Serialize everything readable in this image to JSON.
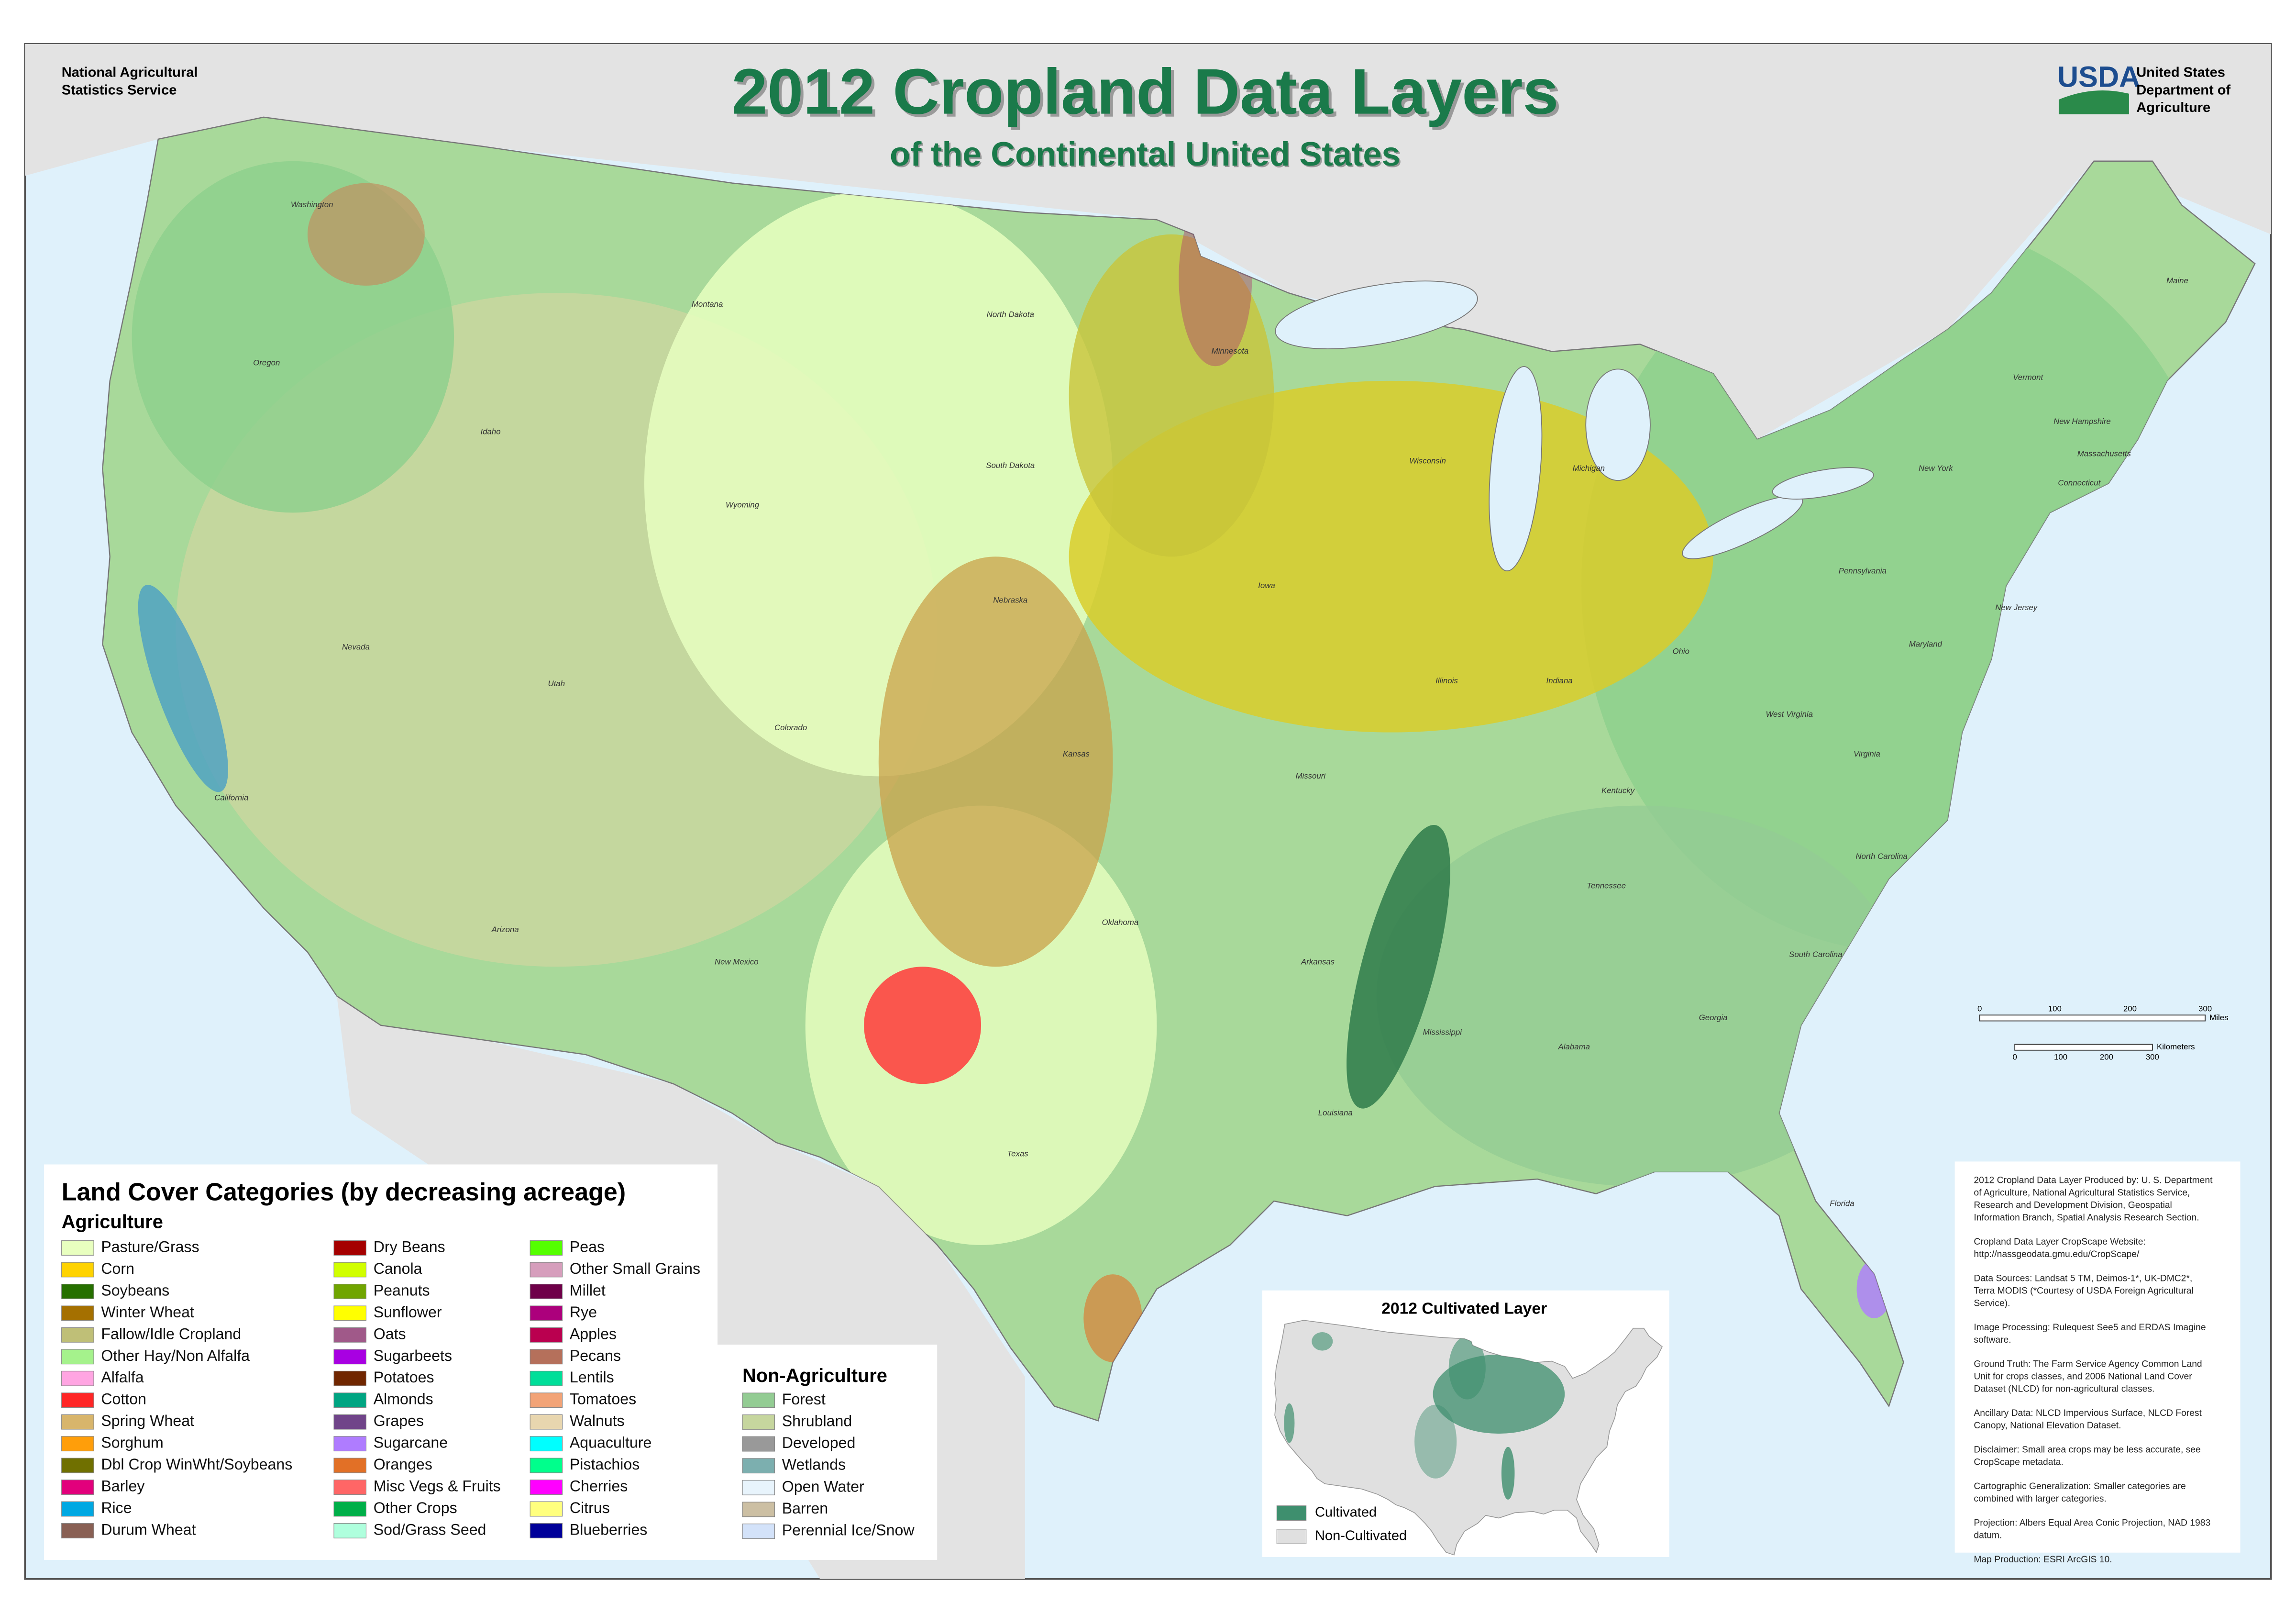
{
  "header": {
    "agency": [
      "National Agricultural",
      "Statistics Service"
    ],
    "title": "2012 Cropland Data Layers",
    "subtitle": "of the Continental United States",
    "usda_logo": "USDA",
    "department": [
      "United States",
      "Department of",
      "Agriculture"
    ]
  },
  "map": {
    "state_labels": [
      "Washington",
      "Oregon",
      "California",
      "Nevada",
      "Idaho",
      "Montana",
      "Wyoming",
      "Utah",
      "Arizona",
      "Colorado",
      "New Mexico",
      "North Dakota",
      "South Dakota",
      "Nebraska",
      "Kansas",
      "Oklahoma",
      "Texas",
      "Minnesota",
      "Iowa",
      "Missouri",
      "Arkansas",
      "Louisiana",
      "Mississippi",
      "Wisconsin",
      "Illinois",
      "Michigan",
      "Indiana",
      "Ohio",
      "Kentucky",
      "Tennessee",
      "Alabama",
      "Georgia",
      "Florida",
      "South Carolina",
      "North Carolina",
      "Virginia",
      "West Virginia",
      "Maryland",
      "Pennsylvania",
      "New York",
      "New Jersey",
      "Vermont",
      "New Hampshire",
      "Maine",
      "Massachusetts",
      "Connecticut"
    ],
    "scale_bar": {
      "miles": {
        "ticks": [
          0,
          100,
          200,
          300
        ],
        "unit": "Miles"
      },
      "kilometers": {
        "ticks": [
          0,
          100,
          200,
          300
        ],
        "unit": "Kilometers"
      }
    }
  },
  "legend": {
    "title": "Land Cover Categories (by decreasing acreage)",
    "agriculture": {
      "heading": "Agriculture",
      "items": [
        {
          "label": "Pasture/Grass",
          "color": "#e8ffbf"
        },
        {
          "label": "Corn",
          "color": "#ffd300"
        },
        {
          "label": "Soybeans",
          "color": "#267000"
        },
        {
          "label": "Winter Wheat",
          "color": "#a57000"
        },
        {
          "label": "Fallow/Idle Cropland",
          "color": "#bfbf77"
        },
        {
          "label": "Other Hay/Non Alfalfa",
          "color": "#a5f28c"
        },
        {
          "label": "Alfalfa",
          "color": "#ffa5e2"
        },
        {
          "label": "Cotton",
          "color": "#ff2626"
        },
        {
          "label": "Spring Wheat",
          "color": "#d8b56b"
        },
        {
          "label": "Sorghum",
          "color": "#ff9e0a"
        },
        {
          "label": "Dbl Crop WinWht/Soybeans",
          "color": "#707000"
        },
        {
          "label": "Barley",
          "color": "#e2007c"
        },
        {
          "label": "Rice",
          "color": "#00a8e2"
        },
        {
          "label": "Durum Wheat",
          "color": "#896054"
        },
        {
          "label": "Dry Beans",
          "color": "#a50000"
        },
        {
          "label": "Canola",
          "color": "#d1ff00"
        },
        {
          "label": "Peanuts",
          "color": "#70a500"
        },
        {
          "label": "Sunflower",
          "color": "#ffff00"
        },
        {
          "label": "Oats",
          "color": "#a05989"
        },
        {
          "label": "Sugarbeets",
          "color": "#a800e2"
        },
        {
          "label": "Potatoes",
          "color": "#702600"
        },
        {
          "label": "Almonds",
          "color": "#00a582"
        },
        {
          "label": "Grapes",
          "color": "#704489"
        },
        {
          "label": "Sugarcane",
          "color": "#af7cff"
        },
        {
          "label": "Oranges",
          "color": "#e27026"
        },
        {
          "label": "Misc Vegs & Fruits",
          "color": "#ff6666"
        },
        {
          "label": "Other Crops",
          "color": "#00af49"
        },
        {
          "label": "Sod/Grass Seed",
          "color": "#afffdd"
        },
        {
          "label": "Peas",
          "color": "#54ff00"
        },
        {
          "label": "Other Small Grains",
          "color": "#d69ebc"
        },
        {
          "label": "Millet",
          "color": "#6f0049"
        },
        {
          "label": "Rye",
          "color": "#ac007c"
        },
        {
          "label": "Apples",
          "color": "#ba004f"
        },
        {
          "label": "Pecans",
          "color": "#b5705b"
        },
        {
          "label": "Lentils",
          "color": "#00de99"
        },
        {
          "label": "Tomatoes",
          "color": "#f2a377"
        },
        {
          "label": "Walnuts",
          "color": "#e8d6af"
        },
        {
          "label": "Aquaculture",
          "color": "#00ffff"
        },
        {
          "label": "Pistachios",
          "color": "#00ff8c"
        },
        {
          "label": "Cherries",
          "color": "#ff00ff"
        },
        {
          "label": "Citrus",
          "color": "#ffff7e"
        },
        {
          "label": "Blueberries",
          "color": "#000099"
        }
      ]
    },
    "non_agriculture": {
      "heading": "Non-Agriculture",
      "items": [
        {
          "label": "Forest",
          "color": "#93cc93"
        },
        {
          "label": "Shrubland",
          "color": "#c6d69e"
        },
        {
          "label": "Developed",
          "color": "#999999"
        },
        {
          "label": "Wetlands",
          "color": "#7cafaf"
        },
        {
          "label": "Open Water",
          "color": "#e8f4fc"
        },
        {
          "label": "Barren",
          "color": "#ccbfa3"
        },
        {
          "label": "Perennial Ice/Snow",
          "color": "#d3e2f9"
        }
      ]
    }
  },
  "inset": {
    "title": "2012 Cultivated Layer",
    "items": [
      {
        "label": "Cultivated",
        "color": "#3e8f6e"
      },
      {
        "label": "Non-Cultivated",
        "color": "#e0e0e0"
      }
    ]
  },
  "credits": [
    [
      "2012 Cropland Data Layer Produced by:  U. S. Department",
      "of Agriculture, National Agricultural Statistics Service,",
      "Research and Development Division, Geospatial",
      "Information Branch, Spatial Analysis Research Section."
    ],
    [
      "Cropland Data Layer CropScape Website:",
      "http://nassgeodata.gmu.edu/CropScape/"
    ],
    [
      "Data Sources:  Landsat 5 TM, Deimos-1*, UK-DMC2*,",
      "Terra MODIS (*Courtesy of USDA Foreign Agricultural",
      "Service)."
    ],
    [
      "Image Processing: Rulequest See5 and ERDAS Imagine",
      "software."
    ],
    [
      "Ground Truth:  The Farm Service Agency Common Land",
      "Unit for crops classes, and 2006 National Land Cover",
      "Dataset (NLCD) for non-agricultural classes."
    ],
    [
      "Ancillary Data:  NLCD Impervious Surface, NLCD Forest",
      "Canopy, National Elevation Dataset."
    ],
    [
      "Disclaimer:  Small area crops may be less accurate, see",
      "CropScape metadata."
    ],
    [
      "Cartographic Generalization:  Smaller categories are",
      "combined with larger categories."
    ],
    [
      "Projection:  Albers Equal Area Conic Projection, NAD 1983",
      "datum."
    ],
    [
      "Map Production:  ESRI ArcGIS 10."
    ]
  ]
}
